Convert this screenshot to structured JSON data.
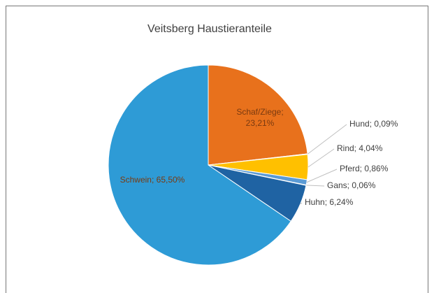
{
  "chart_data": {
    "type": "pie",
    "title": "Veitsberg Haustieranteile",
    "values": [
      23.21,
      0.09,
      4.04,
      0.86,
      0.06,
      6.24,
      65.5
    ],
    "value_labels": [
      "Schaf/Ziege; 23,21%",
      "Hund; 0,09%",
      "Rind; 4,04%",
      "Pferd; 0,86%",
      "Gans; 0,06%",
      "Huhn; 6,24%",
      "Schwein; 65,50%"
    ],
    "colors": [
      "#e8711c",
      "#a5a5a5",
      "#ffc000",
      "#5b9bd5",
      "#8c8c8c",
      "#1f63a3",
      "#2e9bd6"
    ]
  }
}
